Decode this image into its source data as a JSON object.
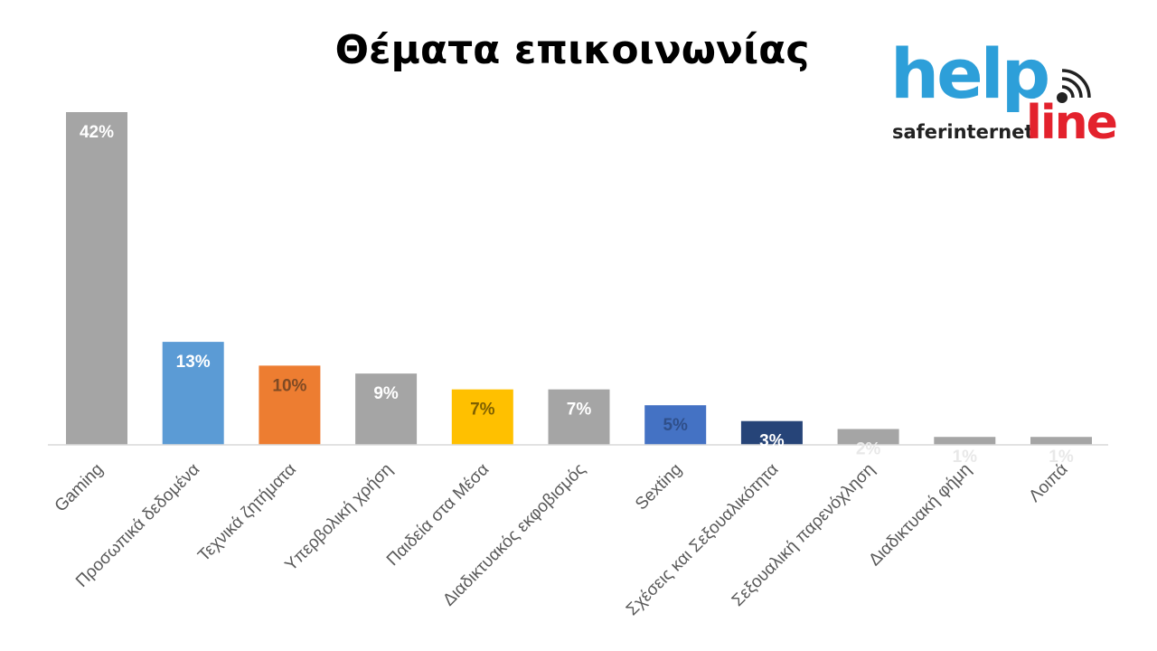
{
  "logo": {
    "help": "help",
    "safer": "saferinternet",
    "line": "line"
  },
  "chart_data": {
    "type": "bar",
    "title": "Θέματα επικοινωνίας",
    "xlabel": "",
    "ylabel": "",
    "ylim": [
      0,
      0.42
    ],
    "grid": false,
    "legend": "none",
    "categories": [
      "Gaming",
      "Προσωπικά δεδομένα",
      "Τεχνικά ζητήματα",
      "Υπερβολική χρήση",
      "Παιδεία στα Μέσα",
      "Διαδικτυακός εκφοβισμός",
      "Sexting",
      "Σχέσεις και Σεξουαλικότητα",
      "Σεξουαλική παρενόχληση",
      "Διαδικτυακή φήμη",
      "Λοιπά"
    ],
    "values": [
      0.42,
      0.13,
      0.1,
      0.09,
      0.07,
      0.07,
      0.05,
      0.03,
      0.02,
      0.01,
      0.01
    ],
    "data_labels": [
      "42%",
      "13%",
      "10%",
      "9%",
      "7%",
      "7%",
      "5%",
      "3%",
      "2%",
      "1%",
      "1%"
    ],
    "colors": [
      "#a5a5a5",
      "#5b9bd5",
      "#ed7d31",
      "#a5a5a5",
      "#ffc000",
      "#a5a5a5",
      "#4472c4",
      "#264478",
      "#a5a5a5",
      "#a5a5a5",
      "#a5a5a5"
    ],
    "label_colors": [
      "#ffffff",
      "#ffffff",
      "#7f4a24",
      "#ffffff",
      "#7f6000",
      "#ffffff",
      "#2f4f8a",
      "#ffffff",
      "#e8e8e8",
      "#e8e8e8",
      "#e8e8e8"
    ]
  }
}
